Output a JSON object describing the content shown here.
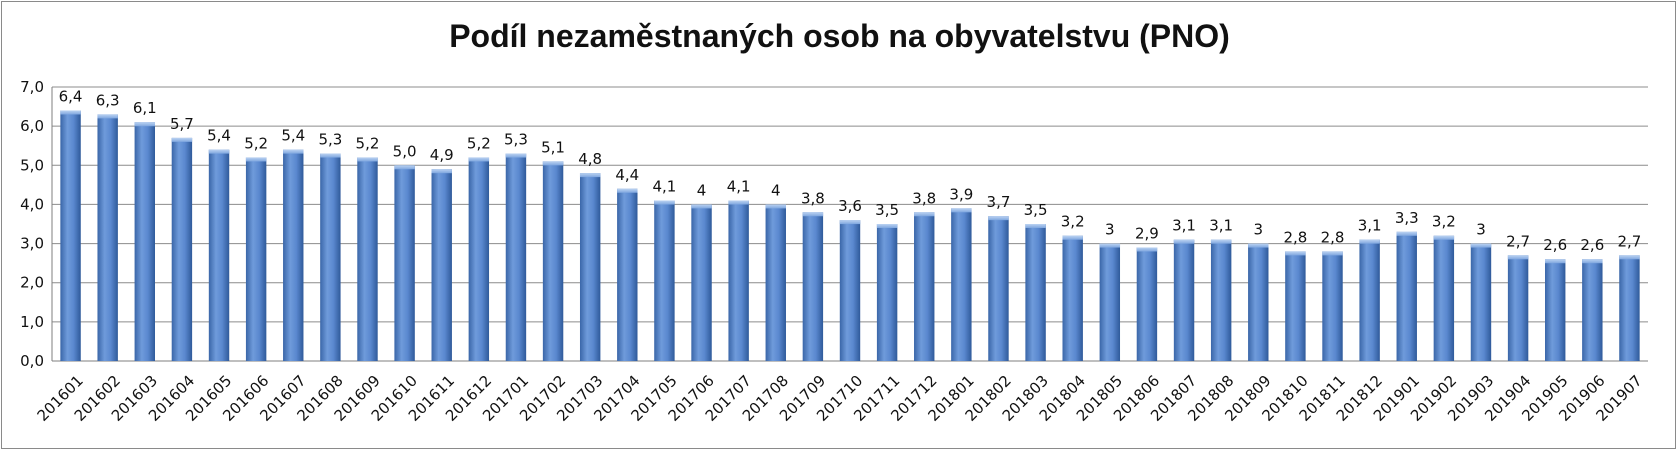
{
  "chart_data": {
    "type": "bar",
    "title": "Podíl nezaměstnaných osob na obyvatelstvu (PNO)",
    "xlabel": "",
    "ylabel": "",
    "ylim": [
      0,
      7
    ],
    "yticks": [
      "0,0",
      "1,0",
      "2,0",
      "3,0",
      "4,0",
      "5,0",
      "6,0",
      "7,0"
    ],
    "grid": true,
    "bar_color": "#4f81bd",
    "categories": [
      "201601",
      "201602",
      "201603",
      "201604",
      "201605",
      "201606",
      "201607",
      "201608",
      "201609",
      "201610",
      "201611",
      "201612",
      "201701",
      "201702",
      "201703",
      "201704",
      "201705",
      "201706",
      "201707",
      "201708",
      "201709",
      "201710",
      "201711",
      "201712",
      "201801",
      "201802",
      "201803",
      "201804",
      "201805",
      "201806",
      "201807",
      "201808",
      "201809",
      "201810",
      "201811",
      "201812",
      "201901",
      "201902",
      "201903",
      "201904",
      "201905",
      "201906",
      "201907"
    ],
    "values": [
      6.4,
      6.3,
      6.1,
      5.7,
      5.4,
      5.2,
      5.4,
      5.3,
      5.2,
      5.0,
      4.9,
      5.2,
      5.3,
      5.1,
      4.8,
      4.4,
      4.1,
      4,
      4.1,
      4,
      3.8,
      3.6,
      3.5,
      3.8,
      3.9,
      3.7,
      3.5,
      3.2,
      3,
      2.9,
      3.1,
      3.1,
      3,
      2.8,
      2.8,
      3.1,
      3.3,
      3.2,
      3,
      2.7,
      2.6,
      2.6,
      2.7
    ],
    "data_labels": [
      "6,4",
      "6,3",
      "6,1",
      "5,7",
      "5,4",
      "5,2",
      "5,4",
      "5,3",
      "5,2",
      "5,0",
      "4,9",
      "5,2",
      "5,3",
      "5,1",
      "4,8",
      "4,4",
      "4,1",
      "4",
      "4,1",
      "4",
      "3,8",
      "3,6",
      "3,5",
      "3,8",
      "3,9",
      "3,7",
      "3,5",
      "3,2",
      "3",
      "2,9",
      "3,1",
      "3,1",
      "3",
      "2,8",
      "2,8",
      "3,1",
      "3,3",
      "3,2",
      "3",
      "2,7",
      "2,6",
      "2,6",
      "2,7"
    ]
  }
}
